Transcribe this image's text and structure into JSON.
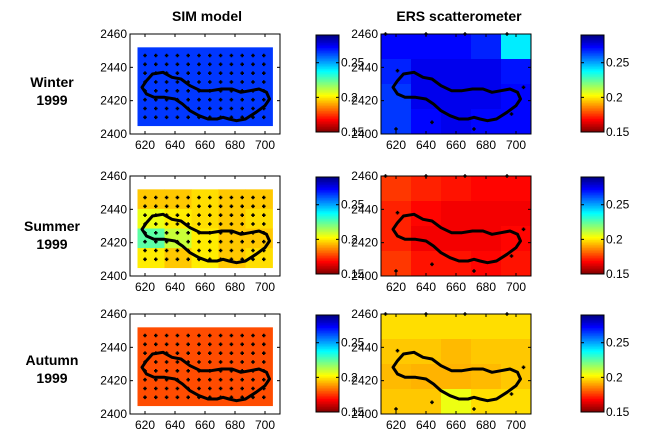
{
  "figure": {
    "column_titles": [
      "SIM model",
      "ERS scatterometer"
    ],
    "row_labels": [
      {
        "line1": "Winter",
        "line2": "1999"
      },
      {
        "line1": "Summer",
        "line2": "1999"
      },
      {
        "line1": "Autumn",
        "line2": "1999"
      }
    ]
  },
  "chart_data": [
    {
      "type": "heatmap",
      "row": "Winter 1999",
      "column": "SIM model",
      "xlim": [
        610,
        710
      ],
      "ylim": [
        2400,
        2460
      ],
      "xticks": [
        "620",
        "640",
        "660",
        "680",
        "700"
      ],
      "yticks": [
        "2400",
        "2420",
        "2440",
        "2460"
      ],
      "extent": {
        "x": [
          615,
          705
        ],
        "y": [
          2405,
          2452
        ]
      },
      "cells": [
        [
          0.265
        ]
      ],
      "show_station_grid": true,
      "colorbar": {
        "range": [
          0.15,
          0.29
        ],
        "ticks": [
          "0.15",
          "0.2",
          "0.25"
        ]
      }
    },
    {
      "type": "heatmap",
      "row": "Winter 1999",
      "column": "ERS scatterometer",
      "xlim": [
        610,
        710
      ],
      "ylim": [
        2400,
        2460
      ],
      "xticks": [
        "620",
        "640",
        "660",
        "680",
        "700"
      ],
      "yticks": [
        "2400",
        "2420",
        "2440",
        "2460"
      ],
      "extent": {
        "x": [
          610,
          710
        ],
        "y": [
          2400,
          2460
        ]
      },
      "cells": [
        [
          0.272,
          0.272,
          0.272,
          0.268,
          0.24
        ],
        [
          0.268,
          0.275,
          0.275,
          0.275,
          0.27
        ],
        [
          0.265,
          0.275,
          0.275,
          0.275,
          0.272
        ],
        [
          0.265,
          0.272,
          0.275,
          0.272,
          0.272
        ]
      ],
      "stations": [
        [
          613,
          2460
        ],
        [
          640,
          2460
        ],
        [
          666,
          2460
        ],
        [
          694,
          2460
        ],
        [
          620,
          2403
        ],
        [
          644,
          2407
        ],
        [
          672,
          2403
        ],
        [
          697,
          2412
        ],
        [
          705,
          2428
        ],
        [
          621,
          2438
        ]
      ],
      "colorbar": {
        "range": [
          0.15,
          0.29
        ],
        "ticks": [
          "0.15",
          "0.2",
          "0.25"
        ]
      }
    },
    {
      "type": "heatmap",
      "row": "Summer 1999",
      "column": "SIM model",
      "xlim": [
        610,
        710
      ],
      "ylim": [
        2400,
        2460
      ],
      "xticks": [
        "620",
        "640",
        "660",
        "680",
        "700"
      ],
      "yticks": [
        "2400",
        "2420",
        "2440",
        "2460"
      ],
      "extent": {
        "x": [
          615,
          705
        ],
        "y": [
          2405,
          2452
        ]
      },
      "cells": [
        [
          0.195,
          0.195,
          0.198,
          0.195,
          0.195
        ],
        [
          0.205,
          0.2,
          0.198,
          0.195,
          0.198
        ],
        [
          0.225,
          0.21,
          0.2,
          0.195,
          0.195
        ],
        [
          0.2,
          0.195,
          0.2,
          0.195,
          0.198
        ]
      ],
      "show_station_grid": true,
      "colorbar": {
        "range": [
          0.15,
          0.29
        ],
        "ticks": [
          "0.15",
          "0.2",
          "0.25"
        ]
      }
    },
    {
      "type": "heatmap",
      "row": "Summer 1999",
      "column": "ERS scatterometer",
      "xlim": [
        610,
        710
      ],
      "ylim": [
        2400,
        2460
      ],
      "xticks": [
        "620",
        "640",
        "660",
        "680",
        "700"
      ],
      "yticks": [
        "2400",
        "2420",
        "2440",
        "2460"
      ],
      "extent": {
        "x": [
          610,
          710
        ],
        "y": [
          2400,
          2460
        ]
      },
      "cells": [
        [
          0.175,
          0.172,
          0.17,
          0.168,
          0.168
        ],
        [
          0.172,
          0.168,
          0.166,
          0.166,
          0.166
        ],
        [
          0.172,
          0.166,
          0.166,
          0.166,
          0.168
        ],
        [
          0.175,
          0.17,
          0.17,
          0.168,
          0.17
        ]
      ],
      "stations": [
        [
          613,
          2460
        ],
        [
          640,
          2460
        ],
        [
          666,
          2460
        ],
        [
          694,
          2460
        ],
        [
          620,
          2403
        ],
        [
          644,
          2407
        ],
        [
          672,
          2403
        ],
        [
          697,
          2412
        ],
        [
          705,
          2428
        ],
        [
          621,
          2438
        ]
      ],
      "colorbar": {
        "range": [
          0.15,
          0.29
        ],
        "ticks": [
          "0.15",
          "0.2",
          "0.25"
        ]
      }
    },
    {
      "type": "heatmap",
      "row": "Autumn 1999",
      "column": "SIM model",
      "xlim": [
        610,
        710
      ],
      "ylim": [
        2400,
        2460
      ],
      "xticks": [
        "620",
        "640",
        "660",
        "680",
        "700"
      ],
      "yticks": [
        "2400",
        "2420",
        "2440",
        "2460"
      ],
      "extent": {
        "x": [
          615,
          705
        ],
        "y": [
          2405,
          2452
        ]
      },
      "cells": [
        [
          0.178
        ]
      ],
      "show_station_grid": true,
      "colorbar": {
        "range": [
          0.15,
          0.29
        ],
        "ticks": [
          "0.15",
          "0.2",
          "0.25"
        ]
      }
    },
    {
      "type": "heatmap",
      "row": "Autumn 1999",
      "column": "ERS scatterometer",
      "xlim": [
        610,
        710
      ],
      "ylim": [
        2400,
        2460
      ],
      "xticks": [
        "620",
        "640",
        "660",
        "680",
        "700"
      ],
      "yticks": [
        "2400",
        "2420",
        "2440",
        "2460"
      ],
      "extent": {
        "x": [
          610,
          710
        ],
        "y": [
          2400,
          2460
        ]
      },
      "cells": [
        [
          0.198,
          0.198,
          0.198,
          0.198,
          0.198
        ],
        [
          0.195,
          0.195,
          0.193,
          0.195,
          0.195
        ],
        [
          0.193,
          0.192,
          0.192,
          0.193,
          0.195
        ],
        [
          0.195,
          0.195,
          0.205,
          0.198,
          0.198
        ]
      ],
      "stations": [
        [
          613,
          2460
        ],
        [
          640,
          2460
        ],
        [
          666,
          2460
        ],
        [
          694,
          2460
        ],
        [
          620,
          2403
        ],
        [
          644,
          2407
        ],
        [
          672,
          2403
        ],
        [
          697,
          2412
        ],
        [
          705,
          2428
        ],
        [
          621,
          2438
        ]
      ],
      "colorbar": {
        "range": [
          0.15,
          0.29
        ],
        "ticks": [
          "0.15",
          "0.2",
          "0.25"
        ]
      }
    }
  ]
}
